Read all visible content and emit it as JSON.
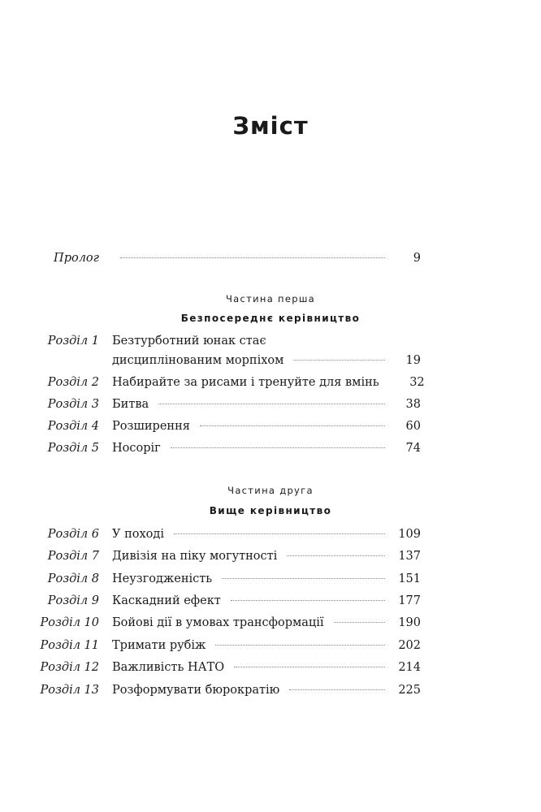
{
  "title": "Зміст",
  "prologue": {
    "label": "Пролог",
    "page": "9"
  },
  "parts": [
    {
      "label": "Частина перша",
      "title": "Безпосереднє керівництво"
    },
    {
      "label": "Частина друга",
      "title": "Вище керівництво"
    }
  ],
  "chapters": [
    {
      "label": "Розділ 1",
      "title_line1": "Безтурботний юнак стає",
      "title": "дисциплінованим морпіхом",
      "page": "19"
    },
    {
      "label": "Розділ 2",
      "title": "Набирайте за рисами і тренуйте для вмінь",
      "page": "32"
    },
    {
      "label": "Розділ 3",
      "title": "Битва",
      "page": "38"
    },
    {
      "label": "Розділ 4",
      "title": "Розширення",
      "page": "60"
    },
    {
      "label": "Розділ 5",
      "title": "Носоріг",
      "page": "74"
    },
    {
      "label": "Розділ 6",
      "title": "У поході",
      "page": "109"
    },
    {
      "label": "Розділ 7",
      "title": "Дивізія на піку могутності",
      "page": "137"
    },
    {
      "label": "Розділ 8",
      "title": "Неузгодженість",
      "page": "151"
    },
    {
      "label": "Розділ 9",
      "title": "Каскадний ефект",
      "page": "177"
    },
    {
      "label": "Розділ 10",
      "title": "Бойові дії в умовах трансформації",
      "page": "190"
    },
    {
      "label": "Розділ 11",
      "title": "Тримати рубіж",
      "page": "202"
    },
    {
      "label": "Розділ 12",
      "title": "Важливість НАТО",
      "page": "214"
    },
    {
      "label": "Розділ 13",
      "title": "Розформувати бюрократію",
      "page": "225"
    }
  ]
}
